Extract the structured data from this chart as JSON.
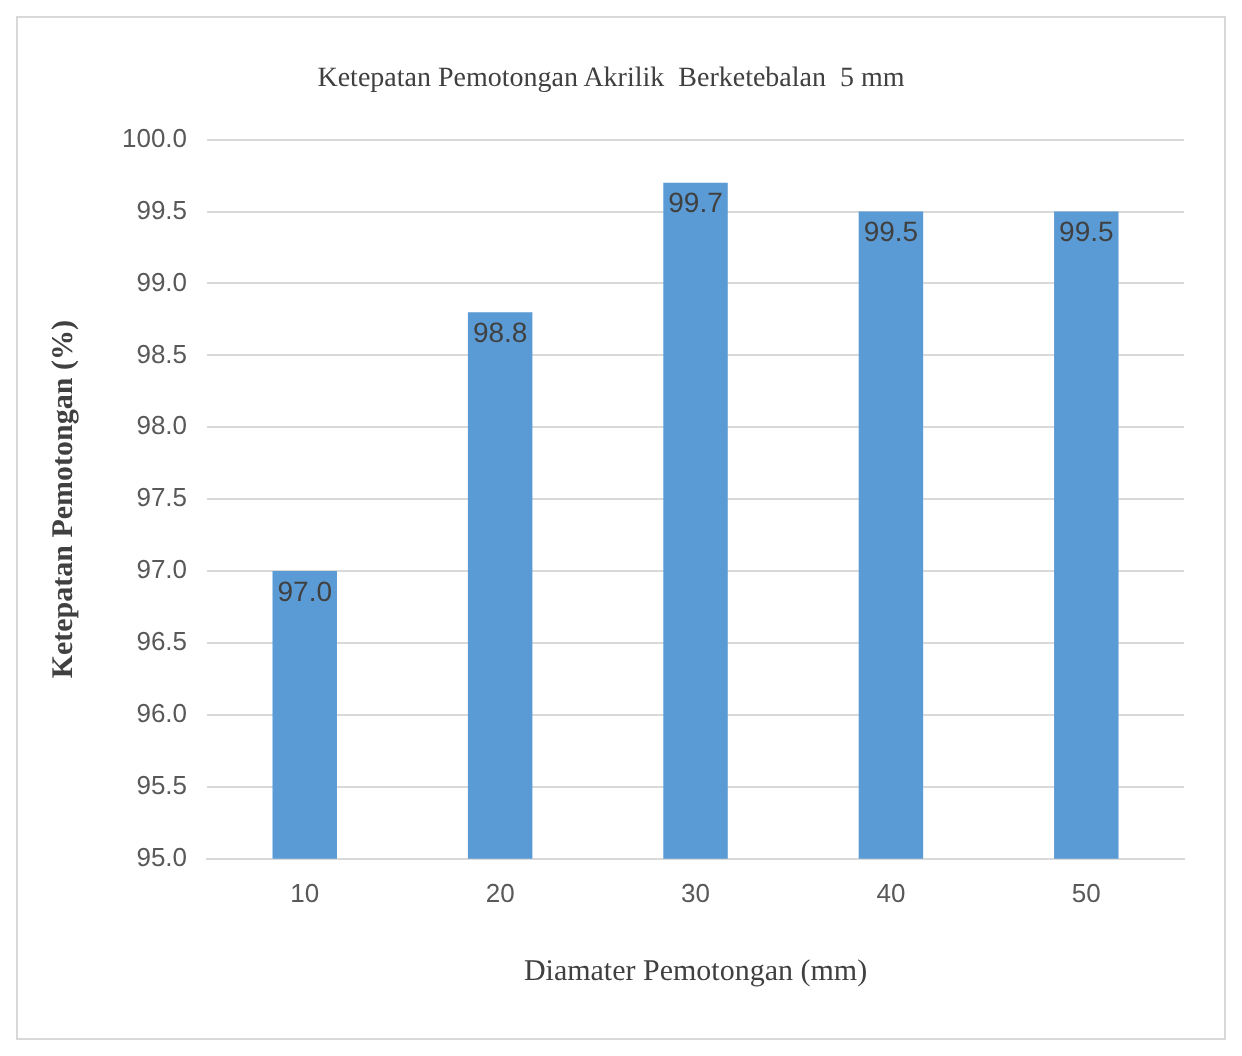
{
  "chart_data": {
    "type": "bar",
    "title": "Ketepatan Pemotongan Akrilik  Berketebalan  5 mm",
    "xlabel": "Diamater Pemotongan (mm)",
    "ylabel": "Ketepatan Pemotongan (%)",
    "categories": [
      "10",
      "20",
      "30",
      "40",
      "50"
    ],
    "values": [
      97.0,
      98.8,
      99.7,
      99.5,
      99.5
    ],
    "value_labels": [
      "97.0",
      "98.8",
      "99.7",
      "99.5",
      "99.5"
    ],
    "color": "#5b9bd5",
    "ylim": [
      95,
      100
    ],
    "yticks": [
      {
        "value": 95,
        "label": "95.0"
      },
      {
        "value": 95.5,
        "label": "95.5"
      },
      {
        "value": 96,
        "label": "96.0"
      },
      {
        "value": 96.5,
        "label": "96.5"
      },
      {
        "value": 97,
        "label": "97.0"
      },
      {
        "value": 97.5,
        "label": "97.5"
      },
      {
        "value": 98,
        "label": "98.0"
      },
      {
        "value": 98.5,
        "label": "98.5"
      },
      {
        "value": 99,
        "label": "99.0"
      },
      {
        "value": 99.5,
        "label": "99.5"
      },
      {
        "value": 100,
        "label": "100.0"
      }
    ],
    "grid": "y",
    "legend": false
  }
}
